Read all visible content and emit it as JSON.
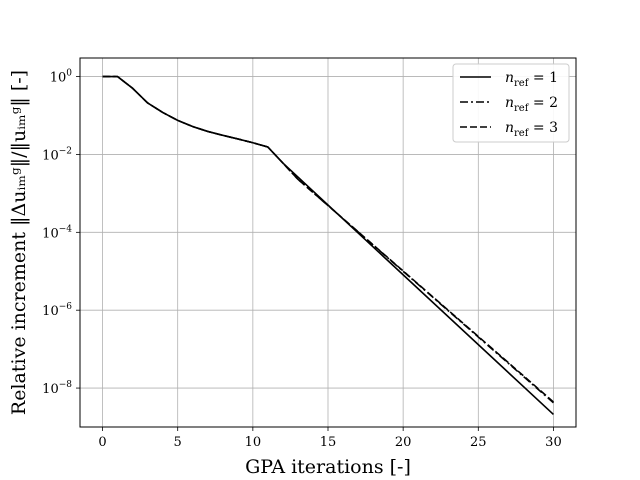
{
  "chart_data": {
    "type": "line",
    "title": "",
    "xlabel": "GPA iterations [-]",
    "ylabel": "Relative increment ‖Δuᵢₘᵍ‖/‖uᵢₘᵍ‖ [-]",
    "xlim": [
      -1.5,
      31.5
    ],
    "ylim": [
      1e-09,
      3
    ],
    "yscale": "log",
    "grid": true,
    "legend_position": "top-right",
    "x_ticks": [
      0,
      5,
      10,
      15,
      20,
      25,
      30
    ],
    "x_tick_labels": [
      "0",
      "5",
      "10",
      "15",
      "20",
      "25",
      "30"
    ],
    "y_ticks": [
      1,
      0.01,
      0.0001,
      1e-06,
      1e-08
    ],
    "y_tick_labels": [
      {
        "base": "10",
        "exp": "0"
      },
      {
        "base": "10",
        "exp": "−2"
      },
      {
        "base": "10",
        "exp": "−4"
      },
      {
        "base": "10",
        "exp": "−6"
      },
      {
        "base": "10",
        "exp": "−8"
      }
    ],
    "series": [
      {
        "name": "n_ref = 1",
        "legend_text": {
          "main": "n",
          "sub": "ref",
          "tail": " = 1"
        },
        "dash": "solid",
        "x": [
          0,
          1,
          2,
          3,
          4,
          5,
          6,
          7,
          8,
          9,
          10,
          11,
          12,
          30
        ],
        "y": [
          1,
          1,
          0.5,
          0.21,
          0.12,
          0.075,
          0.052,
          0.039,
          0.031,
          0.025,
          0.02,
          0.0155,
          0.006,
          2.1e-09
        ]
      },
      {
        "name": "n_ref = 2",
        "legend_text": {
          "main": "n",
          "sub": "ref",
          "tail": " = 2"
        },
        "dash": "dashdot",
        "x": [
          0,
          1,
          2,
          3,
          4,
          5,
          6,
          7,
          8,
          9,
          10,
          11,
          12,
          13,
          30
        ],
        "y": [
          1,
          1,
          0.5,
          0.21,
          0.12,
          0.075,
          0.052,
          0.039,
          0.031,
          0.025,
          0.02,
          0.0155,
          0.006,
          0.0023,
          4.2e-09
        ]
      },
      {
        "name": "n_ref = 3",
        "legend_text": {
          "main": "n",
          "sub": "ref",
          "tail": " = 3"
        },
        "dash": "dashed",
        "x": [
          0,
          1,
          2,
          3,
          4,
          5,
          6,
          7,
          8,
          9,
          10,
          11,
          12,
          13,
          30
        ],
        "y": [
          1,
          1,
          0.5,
          0.21,
          0.12,
          0.075,
          0.052,
          0.039,
          0.031,
          0.025,
          0.02,
          0.0155,
          0.006,
          0.0023,
          4.4e-09
        ]
      }
    ]
  }
}
